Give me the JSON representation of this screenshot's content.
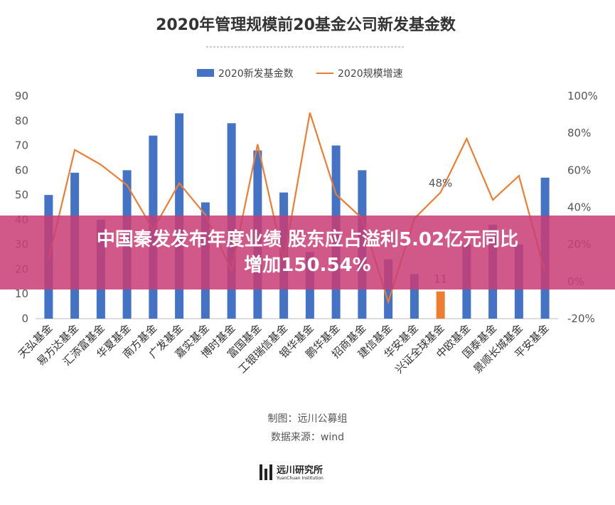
{
  "chart_data": {
    "type": "bar",
    "title": "2020年管理规模前20基金公司新发基金数",
    "categories": [
      "天弘基金",
      "易方达基金",
      "汇添富基金",
      "华夏基金",
      "南方基金",
      "广发基金",
      "嘉实基金",
      "博时基金",
      "富国基金",
      "工银瑞信基金",
      "银华基金",
      "鹏华基金",
      "招商基金",
      "建信基金",
      "华安基金",
      "兴证全球基金",
      "中欧基金",
      "国泰基金",
      "景顺长城基金",
      "平安基金"
    ],
    "series": [
      {
        "name": "2020新发基金数",
        "type": "bar",
        "axis": "left",
        "color": "#4472C4",
        "values": [
          50,
          59,
          40,
          60,
          74,
          83,
          47,
          79,
          68,
          51,
          27,
          70,
          60,
          24,
          18,
          11,
          30,
          38,
          30,
          57
        ]
      },
      {
        "name": "2020规模增速",
        "type": "line",
        "axis": "right",
        "color": "#ED7D31",
        "values": [
          12,
          71,
          63,
          52,
          28,
          53,
          36,
          6,
          74,
          11,
          91,
          47,
          34,
          -11,
          34,
          48,
          77,
          44,
          57,
          5
        ]
      }
    ],
    "highlight": {
      "index": 15,
      "color": "#ED7D31",
      "label": "11"
    },
    "annotation": {
      "index": 15,
      "label": "48%"
    },
    "yleft": {
      "lim": [
        0,
        90
      ],
      "ticks": [
        "0",
        "10",
        "20",
        "30",
        "40",
        "50",
        "60",
        "70",
        "80",
        "90"
      ]
    },
    "yright": {
      "lim": [
        -20,
        100
      ],
      "ticks": [
        "-20%",
        "0%",
        "20%",
        "40%",
        "60%",
        "80%",
        "100%"
      ]
    },
    "xlabel": "",
    "ylabel": "",
    "legend_position": "top",
    "grid": false
  },
  "banner": {
    "line1": "中国秦发发布年度业绩 股东应占溢利5.02亿元同比",
    "line2": "增加150.54%"
  },
  "footer": {
    "maker": "制图：远川公募组",
    "source": "数据来源：wind",
    "logo_cn": "远川研究所",
    "logo_en": "YuanChuan Institution"
  }
}
